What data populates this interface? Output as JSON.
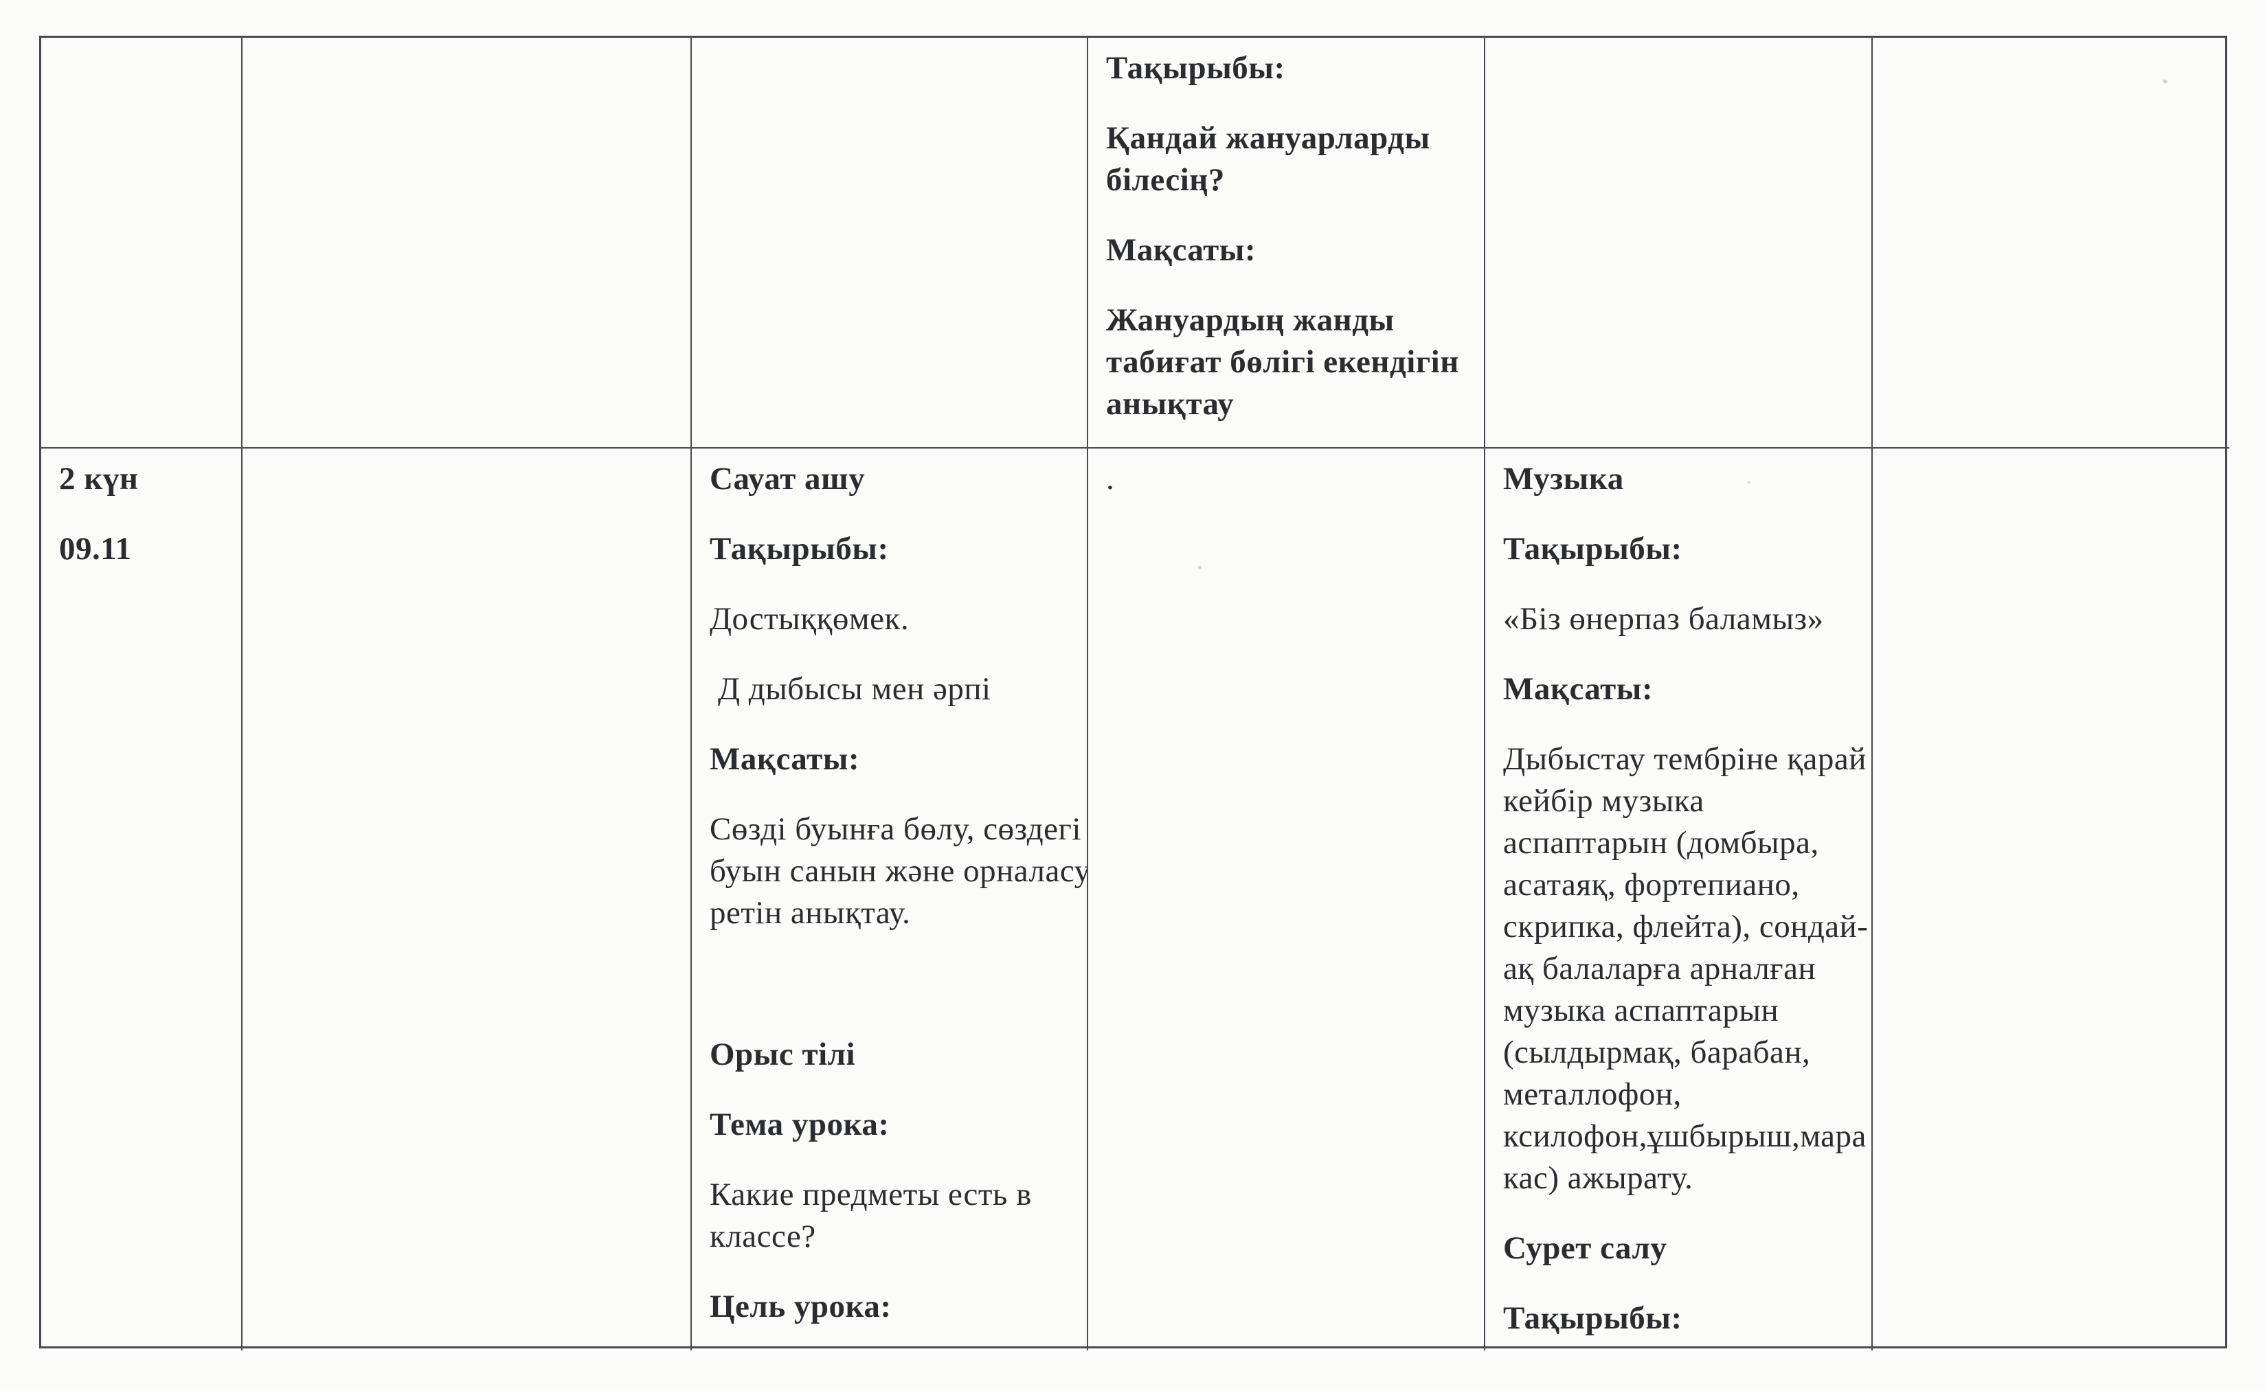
{
  "colors": {
    "paper": "#fbfbf9",
    "line": "#474a52",
    "text": "#2b2c30"
  },
  "table": {
    "cells": {
      "r1c4": {
        "lines": [
          "Тақырыбы:",
          "Қандай жануарларды",
          "білесің?",
          "Мақсаты:",
          "Жануардың жанды",
          "табиғат бөлігі екендігін",
          "анықтау"
        ]
      },
      "r2c1": {
        "lines": [
          "2 күн",
          "09.11"
        ]
      },
      "r2c3": {
        "lines": [
          "Сауат ашу",
          "Тақырыбы:",
          "Достыққөмек.",
          "Д дыбысы мен әрпі",
          "Мақсаты:",
          "Сөзді буынға бөлу, сөздегі",
          "буын санын және орналасу",
          "ретін анықтау.",
          "Орыс тілі",
          "Тема урока:",
          "Какие предметы есть в",
          "классе?",
          "Цель урока:"
        ]
      },
      "r2c4": {
        "lines": [
          "."
        ]
      },
      "r2c5": {
        "lines": [
          "Музыка",
          "Тақырыбы:",
          "«Біз өнерпаз баламыз»",
          "Мақсаты:",
          "Дыбыстау тембріне қарай",
          "кейбір музыка",
          "аспаптарын (домбыра,",
          "асатаяқ, фортепиано,",
          "скрипка, флейта), сондай-",
          "ақ балаларға арналған",
          "музыка аспаптарын",
          "(сылдырмақ, барабан,",
          "металлофон,",
          "ксилофон,ұшбырыш,мара",
          "кас) ажырату.",
          "Сурет салу",
          "Тақырыбы:"
        ]
      }
    }
  }
}
